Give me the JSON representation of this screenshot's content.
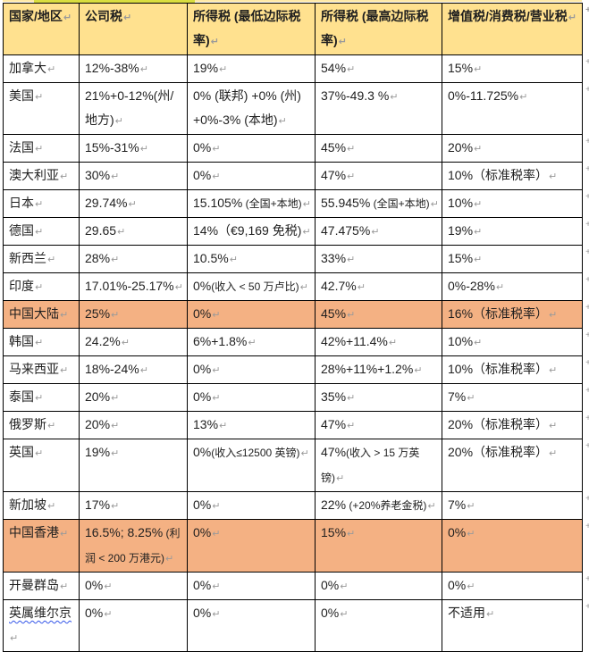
{
  "marks": {
    "cell_end": "↵",
    "row_end": "+"
  },
  "colors": {
    "header_bg": "#ffe18f",
    "row_highlight_bg": "#f4b183",
    "border": "#000000",
    "text": "#1f1f1f",
    "marker": "#9a9a9a",
    "squiggle": "#3355e8",
    "top_strip_base": "#ffe9a6",
    "top_strip_highlight": "#d9dd3f"
  },
  "table": {
    "columns": {
      "region": "国家/地区",
      "corp": "公司税",
      "inc_min": "所得税 (最低边际税率)",
      "inc_max": "所得税 (最高边际税率)",
      "vat": "增值税/消费税/营业税"
    },
    "rows": [
      {
        "country": "加拿大",
        "corp": "12%-38%",
        "mn": "19%",
        "mx": "54%",
        "v": "15%"
      },
      {
        "country": "美国",
        "corp": "21%+0-12%(州/地方)",
        "mn": "0% (联邦) +0% (州) +0%-3% (本地)",
        "mx": "37%-49.3 %",
        "v": "0%-11.725%"
      },
      {
        "country": "法国",
        "corp": "15%-31%",
        "mn": "0%",
        "mx": "45%",
        "v": "20%"
      },
      {
        "country": "澳大利亚",
        "corp": "30%",
        "mn": "0%",
        "mx": "47%",
        "v": "10%（标准税率）"
      },
      {
        "country": "日本",
        "corp": "29.74%",
        "mn": "15.105%",
        "mn_n": " (全国+本地)",
        "mx": "55.945%",
        "mx_n": " (全国+本地)",
        "v": "10%"
      },
      {
        "country": "德国",
        "corp": "29.65",
        "mn": "14%（€9,169 免税)",
        "mx": "47.475%",
        "v": "19%"
      },
      {
        "country": "新西兰",
        "corp": "28%",
        "mn": "10.5%",
        "mx": "33%",
        "v": "15%"
      },
      {
        "country": "印度",
        "corp": "17.01%-25.17%",
        "mn": "0%",
        "mn_n": "(收入 < 50 万卢比)",
        "mx": "42.7%",
        "v": "0%-28%"
      },
      {
        "country": "中国大陆",
        "corp": "25%",
        "mn": "0%",
        "mx": "45%",
        "v": "16%（标准税率）"
      },
      {
        "country": "韩国",
        "corp": "24.2%",
        "mn": "6%+1.8%",
        "mx": "42%+11.4%",
        "v": "10%"
      },
      {
        "country": "马来西亚",
        "corp": "18%-24%",
        "mn": "0%",
        "mx": "28%+11%+1.2%",
        "v": "10%（标准税率）"
      },
      {
        "country": "泰国",
        "corp": "20%",
        "mn": "0%",
        "mx": "35%",
        "v": "7%"
      },
      {
        "country": "俄罗斯",
        "corp": "20%",
        "mn": "13%",
        "mx": "47%",
        "v": "20%（标准税率）"
      },
      {
        "country": "英国",
        "corp": "19%",
        "mn": "0%",
        "mn_n": "(收入≤12500 英镑)",
        "mx": "47%",
        "mx_n": "(收入 > 15 万英镑)",
        "v": "20%（标准税率）"
      },
      {
        "country": "新加坡",
        "corp": "17%",
        "mn": "0%",
        "mx": "22%",
        "mx_n": " (+20%养老金税)",
        "v": "7%"
      },
      {
        "country": "中国香港",
        "corp": "16.5%; 8.25%",
        "corp_n": " (利润 < 200 万港元)",
        "mn": "0%",
        "mx": "15%",
        "v": "0%"
      },
      {
        "country": "开曼群岛",
        "corp": "0%",
        "mn": "0%",
        "mx": "0%",
        "v": "0%"
      },
      {
        "country": "英属维尔京",
        "corp": "0%",
        "mn": "0%",
        "mx": "0%",
        "v": "不适用"
      }
    ]
  }
}
